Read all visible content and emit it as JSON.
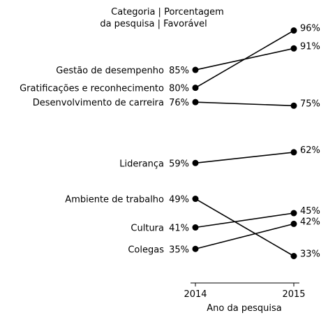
{
  "chart_data": {
    "type": "line",
    "title": "Categoria | Porcentagem\nda pesquisa | Favorável",
    "xlabel": "Ano da pesquisa",
    "ylabel": "",
    "x": [
      "2014",
      "2015"
    ],
    "series": [
      {
        "name": "Gestão de desempenho",
        "values": [
          85,
          91
        ],
        "labels": [
          "85%",
          "91%"
        ]
      },
      {
        "name": "Gratificações e reconhecimento",
        "values": [
          80,
          96
        ],
        "labels": [
          "80%",
          "96%"
        ]
      },
      {
        "name": "Desenvolvimento de carreira",
        "values": [
          76,
          75
        ],
        "labels": [
          "76%",
          "75%"
        ]
      },
      {
        "name": "Liderança",
        "values": [
          59,
          62
        ],
        "labels": [
          "59%",
          "62%"
        ]
      },
      {
        "name": "Ambiente de trabalho",
        "values": [
          49,
          33
        ],
        "labels": [
          "49%",
          "33%"
        ]
      },
      {
        "name": "Cultura",
        "values": [
          41,
          45
        ],
        "labels": [
          "41%",
          "45%"
        ]
      },
      {
        "name": "Colegas",
        "values": [
          35,
          42
        ],
        "labels": [
          "35%",
          "42%"
        ]
      }
    ],
    "ylim": [
      29,
      97.5
    ],
    "grid": false,
    "legend": "none",
    "line_color": "#000000"
  }
}
